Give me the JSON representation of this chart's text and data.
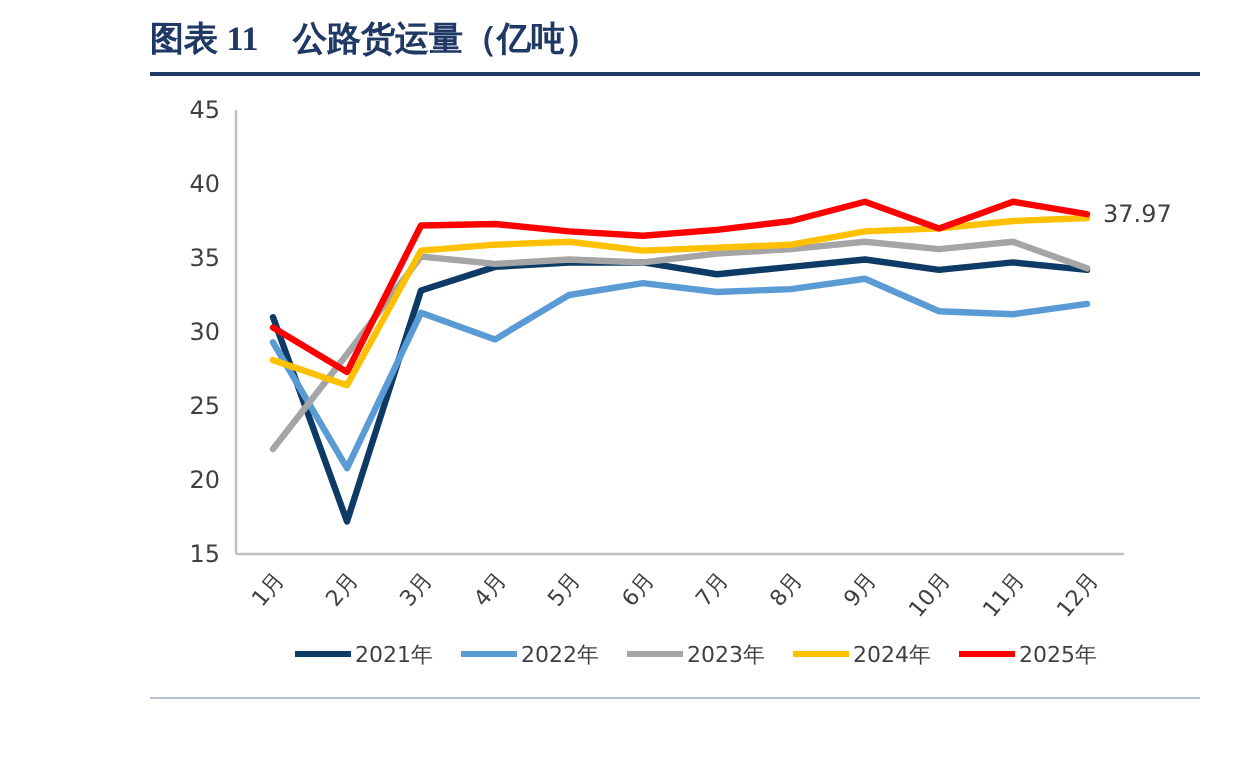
{
  "chart_data": {
    "type": "line",
    "title": "图表 11　公路货运量（亿吨）",
    "categories": [
      "1月",
      "2月",
      "3月",
      "4月",
      "5月",
      "6月",
      "7月",
      "8月",
      "9月",
      "10月",
      "11月",
      "12月"
    ],
    "series": [
      {
        "name": "2021年",
        "color": "#0e3a66",
        "values": [
          31.0,
          17.2,
          32.8,
          34.4,
          34.7,
          34.7,
          33.9,
          34.4,
          34.9,
          34.2,
          34.7,
          34.2
        ]
      },
      {
        "name": "2022年",
        "color": "#5b9bd5",
        "values": [
          29.3,
          20.8,
          31.3,
          29.5,
          32.5,
          33.3,
          32.7,
          32.9,
          33.6,
          31.4,
          31.2,
          31.9
        ]
      },
      {
        "name": "2023年",
        "color": "#a5a5a5",
        "values": [
          22.1,
          28.5,
          35.1,
          34.6,
          34.9,
          34.7,
          35.3,
          35.6,
          36.1,
          35.6,
          36.1,
          34.3
        ]
      },
      {
        "name": "2024年",
        "color": "#ffc000",
        "values": [
          28.1,
          26.4,
          35.5,
          35.9,
          36.1,
          35.5,
          35.7,
          35.9,
          36.8,
          37.0,
          37.5,
          37.7
        ]
      },
      {
        "name": "2025年",
        "color": "#ff0000",
        "values": [
          30.3,
          27.3,
          37.2,
          37.3,
          36.8,
          36.5,
          36.9,
          37.5,
          38.8,
          37.0,
          38.8,
          37.97
        ],
        "value_labels": [
          null,
          null,
          null,
          null,
          null,
          null,
          null,
          null,
          null,
          null,
          null,
          "37.97"
        ]
      }
    ],
    "ylim": [
      15,
      45
    ],
    "yticks": [
      15,
      20,
      25,
      30,
      35,
      40,
      45
    ],
    "grid": false,
    "legend": "bottom",
    "marker": "none",
    "line_style": "solid"
  }
}
